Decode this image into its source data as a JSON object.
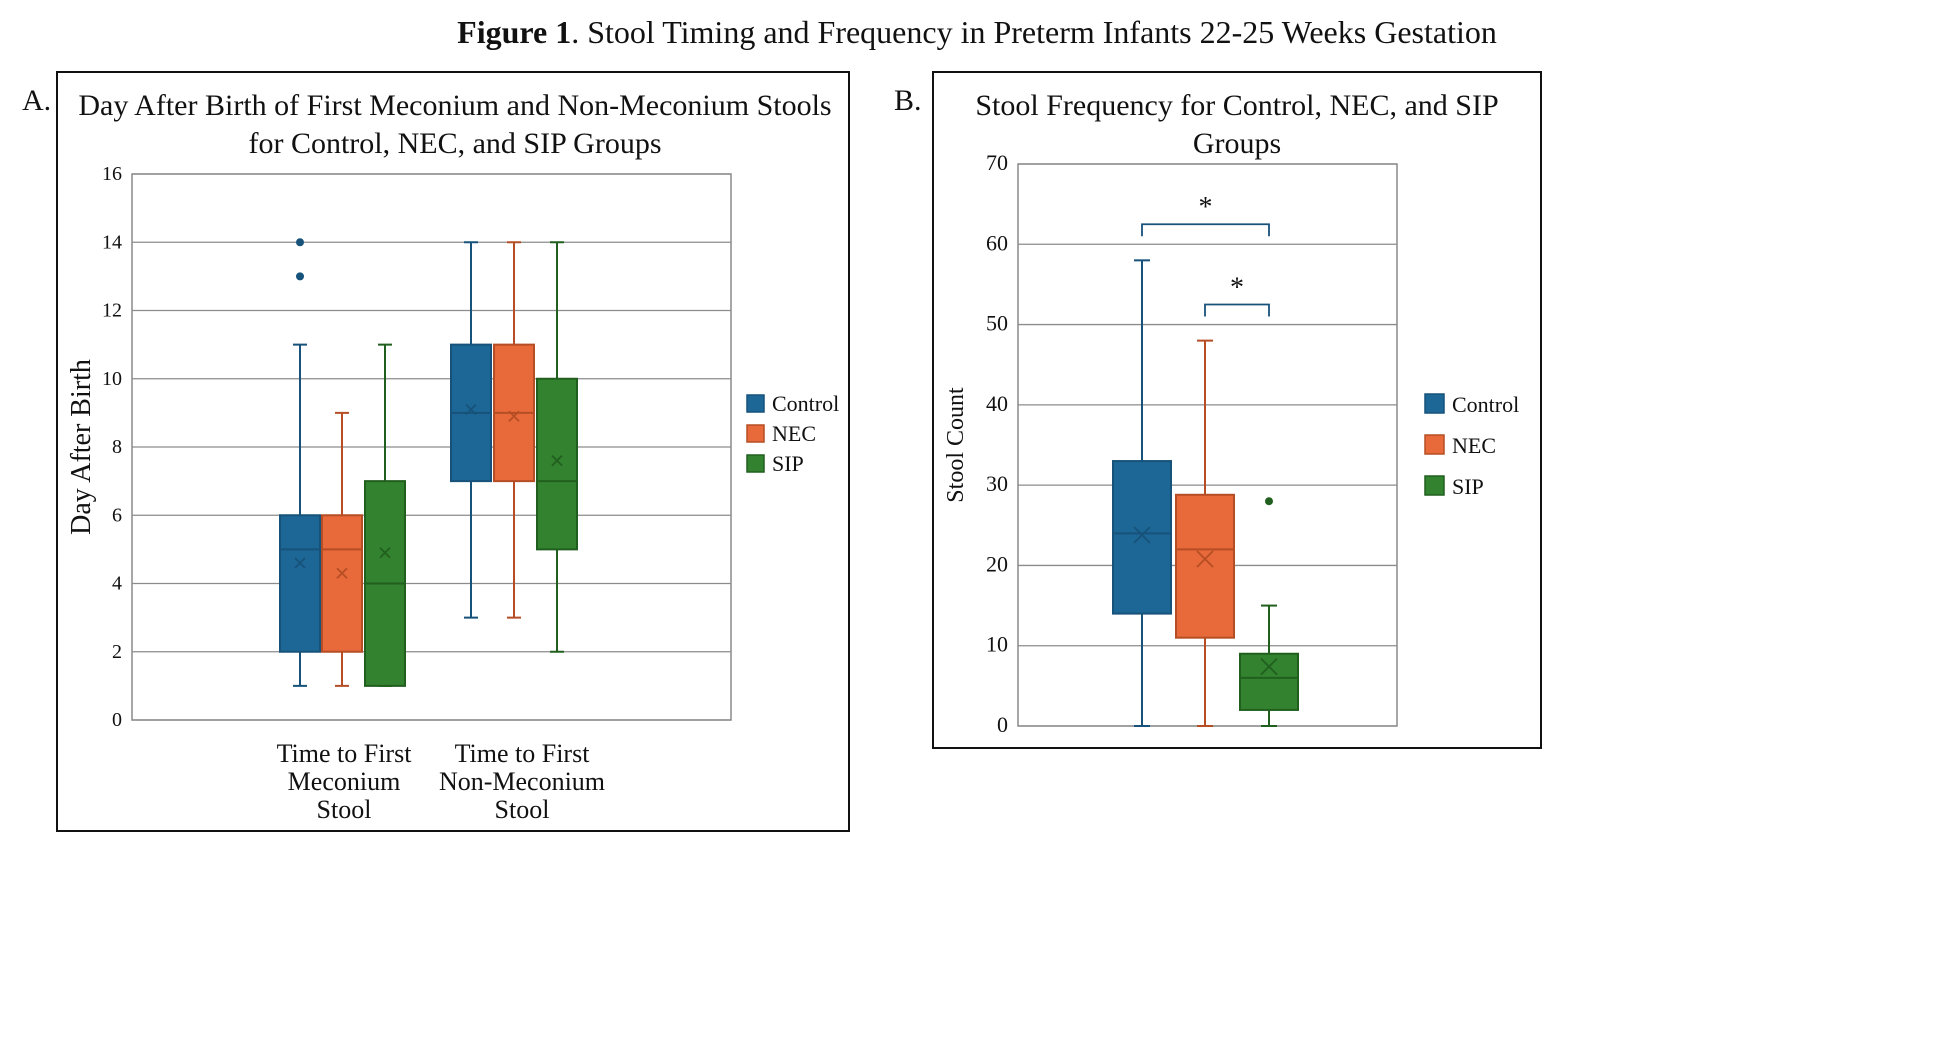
{
  "figure": {
    "title_bold": "Figure 1",
    "title_rest": ". Stool Timing and Frequency in Preterm Infants 22-25 Weeks Gestation"
  },
  "colors": {
    "Control": "#1d6796",
    "NEC": "#e8693a",
    "SIP": "#33822f",
    "Control_line": "#17527a",
    "NEC_line": "#b54e24",
    "SIP_line": "#205f1e",
    "grid": "#8c8c8c"
  },
  "chart_data": [
    {
      "panel": "A.",
      "type": "box",
      "title_line1": "Day After Birth of First Meconium and Non-Meconium Stools",
      "title_line2": "for Control, NEC, and SIP Groups",
      "ylabel": "Day After Birth",
      "xlabel": "",
      "ylim": [
        0,
        16
      ],
      "yticks": [
        0,
        2,
        4,
        6,
        8,
        10,
        12,
        14,
        16
      ],
      "grid": true,
      "legend_position": "right",
      "legend": [
        "Control",
        "NEC",
        "SIP"
      ],
      "categories": [
        {
          "lines": [
            "Time to First",
            "Meconium",
            "Stool"
          ]
        },
        {
          "lines": [
            "Time to First",
            "Non-Meconium",
            "Stool"
          ]
        }
      ],
      "series": [
        {
          "name": "Control",
          "boxes": [
            {
              "min": 1,
              "q1": 2,
              "median": 5,
              "q3": 6,
              "max": 11,
              "mean": 4.6,
              "outliers": [
                13,
                14
              ]
            },
            {
              "min": 3,
              "q1": 7,
              "median": 9,
              "q3": 11,
              "max": 14,
              "mean": 9.1,
              "outliers": []
            }
          ]
        },
        {
          "name": "NEC",
          "boxes": [
            {
              "min": 1,
              "q1": 2,
              "median": 5,
              "q3": 6,
              "max": 9,
              "mean": 4.3,
              "outliers": []
            },
            {
              "min": 3,
              "q1": 7,
              "median": 9,
              "q3": 11,
              "max": 14,
              "mean": 8.9,
              "outliers": []
            }
          ]
        },
        {
          "name": "SIP",
          "boxes": [
            {
              "min": 1,
              "q1": 1,
              "median": 4,
              "q3": 7,
              "max": 11,
              "mean": 4.9,
              "outliers": []
            },
            {
              "min": 2,
              "q1": 5,
              "median": 7,
              "q3": 10,
              "max": 14,
              "mean": 7.6,
              "outliers": []
            }
          ]
        }
      ]
    },
    {
      "panel": "B.",
      "type": "box",
      "title_line1": "Stool Frequency for Control, NEC, and SIP",
      "title_line2": "Groups",
      "ylabel": "Stool Count",
      "xlabel": "",
      "ylim": [
        0,
        70
      ],
      "yticks": [
        0,
        10,
        20,
        30,
        40,
        50,
        60,
        70
      ],
      "grid": true,
      "legend_position": "right",
      "legend": [
        "Control",
        "NEC",
        "SIP"
      ],
      "series": [
        {
          "name": "Control",
          "boxes": [
            {
              "min": 0,
              "q1": 14,
              "median": 24,
              "q3": 33,
              "max": 58,
              "mean": 23.8,
              "outliers": []
            }
          ]
        },
        {
          "name": "NEC",
          "boxes": [
            {
              "min": 0,
              "q1": 11,
              "median": 22,
              "q3": 28.8,
              "max": 48,
              "mean": 20.8,
              "outliers": []
            }
          ]
        },
        {
          "name": "SIP",
          "boxes": [
            {
              "min": 0,
              "q1": 2,
              "median": 6,
              "q3": 9,
              "max": 15,
              "mean": 7.4,
              "outliers": [
                28
              ]
            }
          ]
        }
      ],
      "annotations": [
        {
          "text": "*",
          "from": "Control",
          "to": "SIP",
          "level": 62.5
        },
        {
          "text": "*",
          "from": "NEC",
          "to": "SIP",
          "level": 52.5
        }
      ]
    }
  ]
}
